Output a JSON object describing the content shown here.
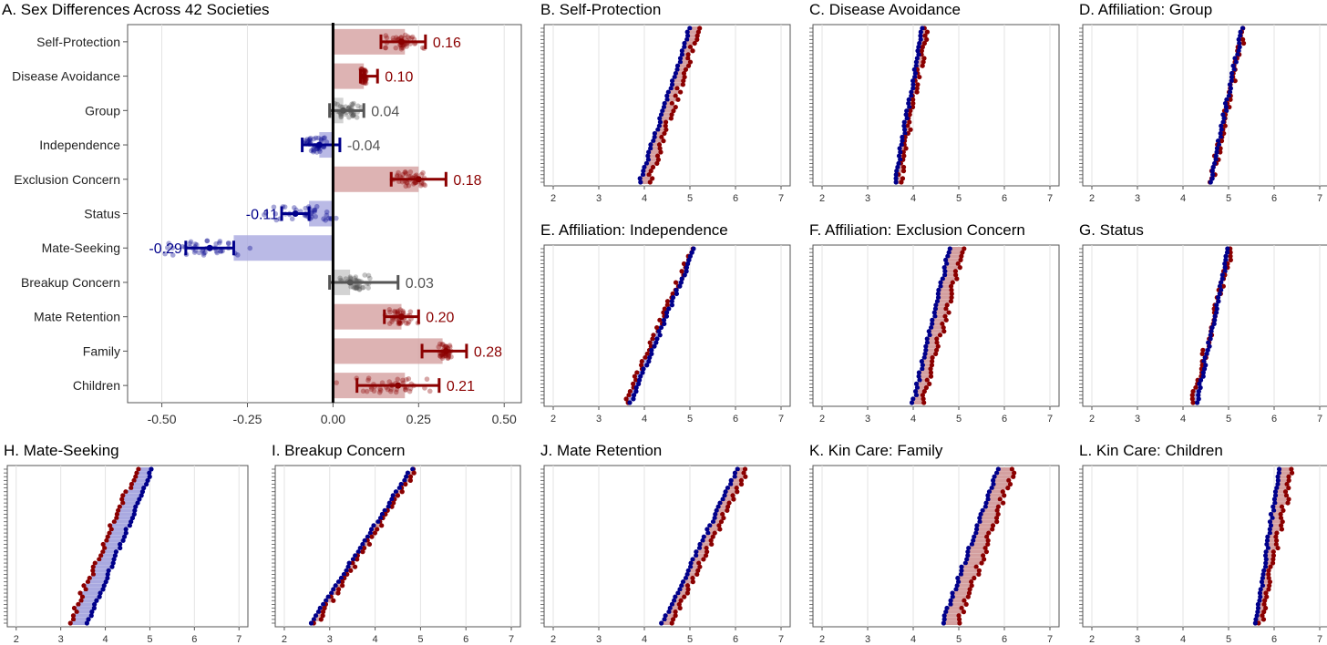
{
  "colors": {
    "women": "#8b0000",
    "men": "#00008b",
    "neutral": "#555555",
    "women_fill": "#d4a0a0",
    "men_fill": "#a9a9e0",
    "neutral_fill": "#c8c8c8",
    "grid": "#e3e3e3"
  },
  "chart_data": [
    {
      "id": "A",
      "type": "bar",
      "title": "A. Sex Differences Across 42 Societies",
      "xlim": [
        -0.6,
        0.55
      ],
      "xticks": [
        -0.5,
        -0.25,
        0.0,
        0.25,
        0.5
      ],
      "xtick_labels": [
        "-0.50",
        "-0.25",
        "0.00",
        "0.25",
        "0.50"
      ],
      "grid": true,
      "points_per_category": 42,
      "categories": [
        "Self-Protection",
        "Disease Avoidance",
        "Group",
        "Independence",
        "Exclusion Concern",
        "Status",
        "Mate-Seeking",
        "Breakup Concern",
        "Mate Retention",
        "Family",
        "Children"
      ],
      "values": [
        0.16,
        0.1,
        0.04,
        -0.04,
        0.18,
        -0.11,
        -0.29,
        0.03,
        0.2,
        0.28,
        0.21
      ],
      "value_labels": [
        "0.16",
        "0.10",
        "0.04",
        "-0.04",
        "0.18",
        "-0.11",
        "-0.29",
        "0.03",
        "0.20",
        "0.28",
        "0.21"
      ],
      "bar_ends": [
        0.21,
        0.09,
        0.03,
        -0.04,
        0.25,
        -0.07,
        -0.29,
        0.05,
        0.2,
        0.32,
        0.21
      ],
      "means": [
        0.2,
        0.09,
        0.03,
        -0.04,
        0.25,
        -0.11,
        -0.36,
        0.05,
        0.2,
        0.33,
        0.19
      ],
      "ci_low": [
        0.14,
        0.08,
        -0.01,
        -0.09,
        0.17,
        -0.15,
        -0.43,
        -0.01,
        0.15,
        0.26,
        0.07
      ],
      "ci_high": [
        0.27,
        0.13,
        0.09,
        0.02,
        0.33,
        -0.07,
        -0.29,
        0.19,
        0.25,
        0.39,
        0.31
      ],
      "spread_low": [
        0.12,
        0.08,
        -0.01,
        -0.11,
        0.16,
        -0.22,
        -0.55,
        0.0,
        0.14,
        0.29,
        -0.02
      ],
      "spread_high": [
        0.28,
        0.1,
        0.09,
        0.0,
        0.3,
        0.05,
        -0.2,
        0.13,
        0.26,
        0.36,
        0.35
      ],
      "color_group": [
        "women",
        "women",
        "neutral",
        "men",
        "women",
        "men",
        "men",
        "neutral",
        "women",
        "women",
        "women"
      ],
      "label_color_group": [
        "women",
        "women",
        "neutral",
        "neutral",
        "women",
        "men",
        "men",
        "neutral",
        "women",
        "women",
        "women"
      ],
      "label_side": [
        "right",
        "right",
        "right",
        "right",
        "right",
        "left",
        "left",
        "right",
        "right",
        "right",
        "right"
      ]
    },
    {
      "id": "B",
      "type": "scatter",
      "title": "B. Self-Protection",
      "xlim": [
        1.8,
        7.2
      ],
      "xticks": [
        2,
        3,
        4,
        5,
        6,
        7
      ],
      "n": 42,
      "series": [
        {
          "name": "",
          "color": "men",
          "range": [
            3.9,
            5.0
          ]
        },
        {
          "name": "",
          "color": "women",
          "range": [
            4.1,
            5.2
          ]
        }
      ],
      "gap_color": "women"
    },
    {
      "id": "C",
      "type": "scatter",
      "title": "C. Disease Avoidance",
      "xlim": [
        1.8,
        7.2
      ],
      "xticks": [
        2,
        3,
        4,
        5,
        6,
        7
      ],
      "n": 42,
      "series": [
        {
          "name": "",
          "color": "men",
          "range": [
            3.6,
            4.2
          ]
        },
        {
          "name": "",
          "color": "women",
          "range": [
            3.7,
            4.3
          ]
        }
      ],
      "gap_color": "women"
    },
    {
      "id": "D",
      "type": "scatter",
      "title": "D. Affiliation: Group",
      "xlim": [
        1.8,
        7.2
      ],
      "xticks": [
        2,
        3,
        4,
        5,
        6,
        7
      ],
      "n": 42,
      "series": [
        {
          "name": "",
          "color": "men",
          "range": [
            4.6,
            5.3
          ]
        },
        {
          "name": "",
          "color": "women",
          "range": [
            4.62,
            5.35
          ]
        }
      ],
      "gap_color": "women"
    },
    {
      "id": "E",
      "type": "scatter",
      "title": "E. Affiliation: Independence",
      "xlim": [
        1.8,
        7.2
      ],
      "xticks": [
        2,
        3,
        4,
        5,
        6,
        7
      ],
      "n": 42,
      "series": [
        {
          "name": "",
          "color": "men",
          "range": [
            3.7,
            5.1
          ]
        },
        {
          "name": "",
          "color": "women",
          "range": [
            3.6,
            5.05
          ]
        }
      ],
      "gap_color": "men"
    },
    {
      "id": "F",
      "type": "scatter",
      "title": "F. Affiliation: Exclusion Concern",
      "xlim": [
        1.8,
        7.2
      ],
      "xticks": [
        2,
        3,
        4,
        5,
        6,
        7
      ],
      "n": 42,
      "series": [
        {
          "name": "",
          "color": "men",
          "range": [
            4.0,
            4.8
          ]
        },
        {
          "name": "",
          "color": "women",
          "range": [
            4.2,
            5.1
          ]
        }
      ],
      "gap_color": "women"
    },
    {
      "id": "G",
      "type": "scatter",
      "title": "G. Status",
      "xlim": [
        1.8,
        7.2
      ],
      "xticks": [
        2,
        3,
        4,
        5,
        6,
        7
      ],
      "n": 42,
      "series": [
        {
          "name": "",
          "color": "men",
          "range": [
            4.3,
            5.0
          ]
        },
        {
          "name": "",
          "color": "women",
          "range": [
            4.2,
            5.05
          ]
        }
      ],
      "gap_color": "men"
    },
    {
      "id": "H",
      "type": "scatter",
      "title": "H. Mate-Seeking",
      "xlim": [
        1.8,
        7.2
      ],
      "xticks": [
        2,
        3,
        4,
        5,
        6,
        7
      ],
      "n": 42,
      "series": [
        {
          "name": "",
          "color": "men",
          "range": [
            3.6,
            5.05
          ]
        },
        {
          "name": "",
          "color": "women",
          "range": [
            3.2,
            4.7
          ]
        }
      ],
      "gap_color": "men"
    },
    {
      "id": "I",
      "type": "scatter",
      "title": "I. Breakup Concern",
      "xlim": [
        1.8,
        7.2
      ],
      "xticks": [
        2,
        3,
        4,
        5,
        6,
        7
      ],
      "n": 42,
      "series": [
        {
          "name": "",
          "color": "men",
          "range": [
            2.6,
            4.8
          ]
        },
        {
          "name": "",
          "color": "women",
          "range": [
            2.7,
            4.9
          ]
        }
      ],
      "gap_color": "women"
    },
    {
      "id": "J",
      "type": "scatter",
      "title": "J. Mate Retention",
      "xlim": [
        1.8,
        7.2
      ],
      "xticks": [
        2,
        3,
        4,
        5,
        6,
        7
      ],
      "n": 42,
      "series": [
        {
          "name": "",
          "color": "men",
          "range": [
            4.4,
            6.05
          ]
        },
        {
          "name": "",
          "color": "women",
          "range": [
            4.6,
            6.25
          ]
        }
      ],
      "gap_color": "women"
    },
    {
      "id": "K",
      "type": "scatter",
      "title": "K. Kin Care: Family",
      "xlim": [
        1.8,
        7.2
      ],
      "xticks": [
        2,
        3,
        4,
        5,
        6,
        7
      ],
      "n": 42,
      "series": [
        {
          "name": "",
          "color": "men",
          "range": [
            4.65,
            5.85
          ]
        },
        {
          "name": "",
          "color": "women",
          "range": [
            5.0,
            6.2
          ]
        }
      ],
      "gap_color": "women"
    },
    {
      "id": "L",
      "type": "scatter",
      "title": "L. Kin Care: Children",
      "xlim": [
        1.8,
        7.2
      ],
      "xticks": [
        2,
        3,
        4,
        5,
        6,
        7
      ],
      "n": 42,
      "series": [
        {
          "name": "",
          "color": "men",
          "range": [
            5.6,
            6.1
          ]
        },
        {
          "name": "",
          "color": "women",
          "range": [
            5.7,
            6.4
          ]
        }
      ],
      "gap_color": "women"
    }
  ]
}
